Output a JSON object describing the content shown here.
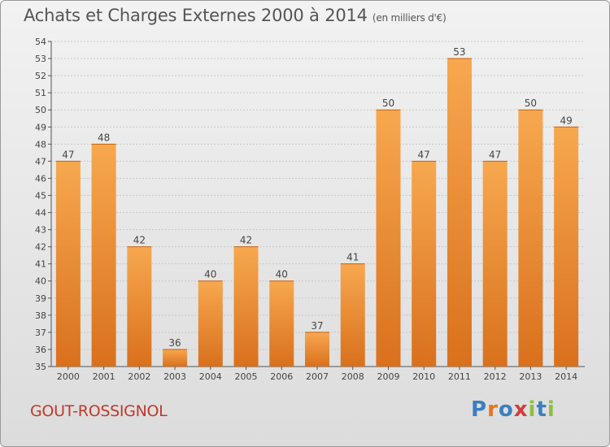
{
  "header": {
    "title": "Achats et Charges Externes 2000 à 2014",
    "subtitle": "(en milliers d'€)"
  },
  "footer": {
    "commune": "GOUT-ROSSIGNOL",
    "logo_text": "Proxiti",
    "logo_colors": [
      "#3a7fc1",
      "#e8731a",
      "#3a7fc1",
      "#d23c3c",
      "#8fbf3f",
      "#3a7fc1",
      "#8fbf3f"
    ]
  },
  "colors": {
    "bar_top": "#f7a84f",
    "bar_bottom": "#d9701c",
    "label": "#444444",
    "grid": "#c8c8c8"
  },
  "chart_data": {
    "type": "bar",
    "title": "Achats et Charges Externes 2000 à 2014",
    "subtitle": "(en milliers d'€)",
    "categories": [
      "2000",
      "2001",
      "2002",
      "2003",
      "2004",
      "2005",
      "2006",
      "2007",
      "2008",
      "2009",
      "2010",
      "2011",
      "2012",
      "2013",
      "2014"
    ],
    "values": [
      47,
      48,
      42,
      36,
      40,
      42,
      40,
      37,
      41,
      50,
      47,
      53,
      47,
      50,
      49
    ],
    "ylim": [
      35,
      54
    ],
    "yticks": [
      35,
      36,
      37,
      38,
      39,
      40,
      41,
      42,
      43,
      44,
      45,
      46,
      47,
      48,
      49,
      50,
      51,
      52,
      53,
      54
    ],
    "grid": true,
    "data_labels": true
  }
}
